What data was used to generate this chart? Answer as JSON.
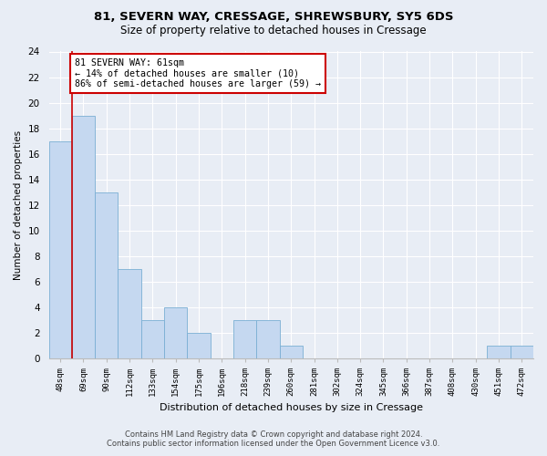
{
  "title1": "81, SEVERN WAY, CRESSAGE, SHREWSBURY, SY5 6DS",
  "title2": "Size of property relative to detached houses in Cressage",
  "xlabel": "Distribution of detached houses by size in Cressage",
  "ylabel": "Number of detached properties",
  "categories": [
    "48sqm",
    "69sqm",
    "90sqm",
    "112sqm",
    "133sqm",
    "154sqm",
    "175sqm",
    "196sqm",
    "218sqm",
    "239sqm",
    "260sqm",
    "281sqm",
    "302sqm",
    "324sqm",
    "345sqm",
    "366sqm",
    "387sqm",
    "408sqm",
    "430sqm",
    "451sqm",
    "472sqm"
  ],
  "values": [
    17,
    19,
    13,
    7,
    3,
    4,
    2,
    0,
    3,
    3,
    1,
    0,
    0,
    0,
    0,
    0,
    0,
    0,
    0,
    1,
    1
  ],
  "bar_color": "#c5d8f0",
  "bar_edge_color": "#7aafd4",
  "annotation_line1": "81 SEVERN WAY: 61sqm",
  "annotation_line2": "← 14% of detached houses are smaller (10)",
  "annotation_line3": "86% of semi-detached houses are larger (59) →",
  "annotation_box_color": "#ffffff",
  "annotation_box_edge": "#cc0000",
  "vline_color": "#cc0000",
  "ylim": [
    0,
    24
  ],
  "yticks": [
    0,
    2,
    4,
    6,
    8,
    10,
    12,
    14,
    16,
    18,
    20,
    22,
    24
  ],
  "footer1": "Contains HM Land Registry data © Crown copyright and database right 2024.",
  "footer2": "Contains public sector information licensed under the Open Government Licence v3.0.",
  "bg_color": "#e8edf5",
  "plot_bg_color": "#e8edf5",
  "grid_color": "#ffffff",
  "title1_fontsize": 9.5,
  "title2_fontsize": 8.5
}
